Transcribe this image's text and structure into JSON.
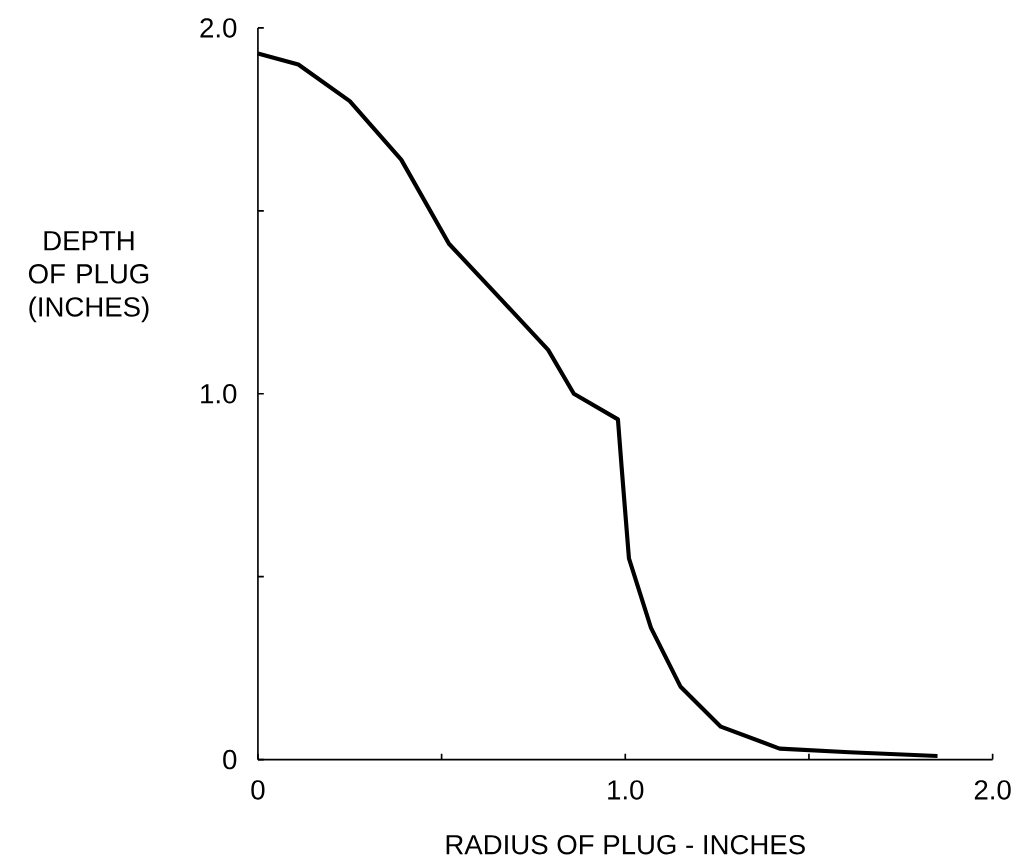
{
  "chart_data": {
    "type": "line",
    "xlabel": "RADIUS OF PLUG - INCHES",
    "ylabel": "DEPTH OF PLUG (INCHES)",
    "x": [
      0,
      0.11,
      0.25,
      0.39,
      0.52,
      0.66,
      0.79,
      0.86,
      0.98,
      0.99,
      1.01,
      1.07,
      1.15,
      1.26,
      1.42,
      1.61,
      1.85
    ],
    "series": [
      {
        "color": "#000000",
        "values": [
          1.93,
          1.9,
          1.8,
          1.64,
          1.41,
          1.26,
          1.12,
          1.0,
          0.93,
          0.8,
          0.55,
          0.36,
          0.2,
          0.09,
          0.03,
          0.02,
          0.01
        ]
      }
    ],
    "xlim": [
      0,
      2
    ],
    "ylim": [
      0,
      2
    ],
    "xticks": [
      {
        "value": 0,
        "label": "0"
      },
      {
        "value": 0.5,
        "label": null
      },
      {
        "value": 1,
        "label": "1.0"
      },
      {
        "value": 1.5,
        "label": null
      },
      {
        "value": 2,
        "label": "2.0"
      }
    ],
    "yticks": [
      {
        "value": 0,
        "label": "0"
      },
      {
        "value": 0.5,
        "label": null
      },
      {
        "value": 1,
        "label": "1.0"
      },
      {
        "value": 1.5,
        "label": null
      },
      {
        "value": 2,
        "label": "2.0"
      }
    ]
  }
}
